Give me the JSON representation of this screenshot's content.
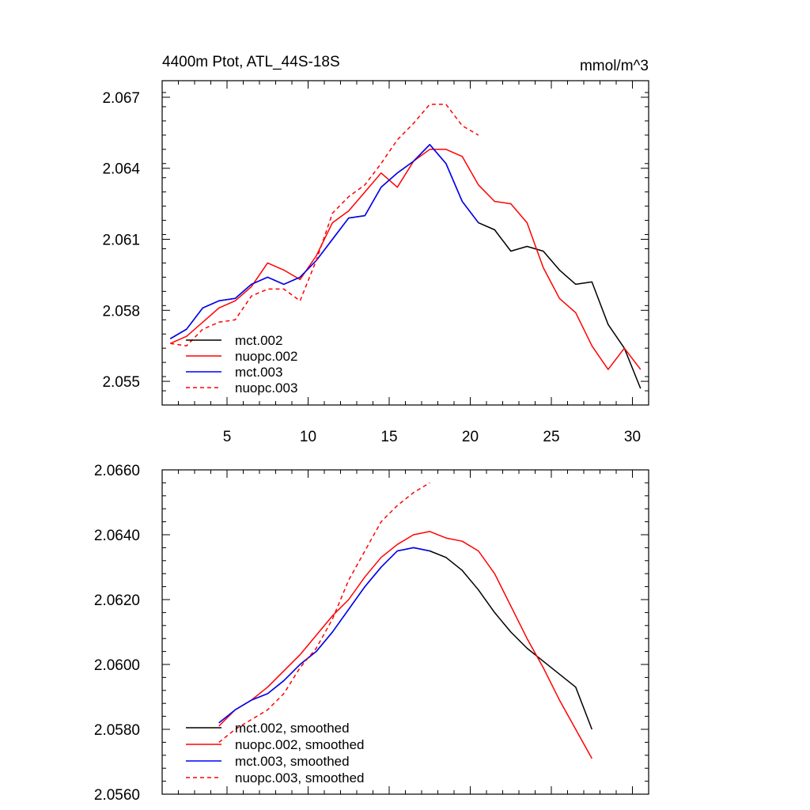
{
  "figure": {
    "title_left": "4400m Ptot, ATL_44S-18S",
    "title_right": "mmol/m^3"
  },
  "chart_data": [
    {
      "type": "line",
      "title": "4400m Ptot, ATL_44S-18S",
      "units": "mmol/m^3",
      "xlim": [
        1,
        31
      ],
      "ylim": [
        2.054,
        2.0677
      ],
      "x_ticks": [
        5,
        10,
        15,
        20,
        25,
        30
      ],
      "x_tick_labels": [
        "5",
        "10",
        "15",
        "20",
        "25",
        "30"
      ],
      "y_ticks": [
        2.055,
        2.058,
        2.061,
        2.064,
        2.067
      ],
      "y_tick_labels": [
        "2.055",
        "2.058",
        "2.061",
        "2.064",
        "2.067"
      ],
      "legend_position": "bottom-left",
      "series": [
        {
          "name": "mct.002",
          "color": "#000000",
          "dash": "solid",
          "x": [
            1.5,
            2.5,
            3.5,
            4.5,
            5.5,
            6.5,
            7.5,
            8.5,
            9.5,
            10.5,
            11.5,
            12.5,
            13.5,
            14.5,
            15.5,
            16.5,
            17.5,
            18.5,
            19.5,
            20.5,
            21.5,
            22.5,
            23.5,
            24.5,
            25.5,
            26.5,
            27.5,
            28.5,
            29.5,
            30.5
          ],
          "y": [
            2.0568,
            2.0572,
            2.0581,
            2.0584,
            2.0585,
            2.0591,
            2.0594,
            2.0591,
            2.0594,
            2.0601,
            2.061,
            2.0619,
            2.062,
            2.0632,
            2.0638,
            2.0643,
            2.065,
            2.0642,
            2.0626,
            2.0617,
            2.0614,
            2.0605,
            2.0607,
            2.0605,
            2.0597,
            2.0591,
            2.0592,
            2.0574,
            2.0564,
            2.0547
          ]
        },
        {
          "name": "nuopc.002",
          "color": "#ff0000",
          "dash": "solid",
          "x": [
            1.5,
            2.5,
            3.5,
            4.5,
            5.5,
            6.5,
            7.5,
            8.5,
            9.5,
            10.5,
            11.5,
            12.5,
            13.5,
            14.5,
            15.5,
            16.5,
            17.5,
            18.5,
            19.5,
            20.5,
            21.5,
            22.5,
            23.5,
            24.5,
            25.5,
            26.5,
            27.5,
            28.5,
            29.5,
            30.5
          ],
          "y": [
            2.0566,
            2.0569,
            2.0575,
            2.0581,
            2.0584,
            2.059,
            2.06,
            2.0597,
            2.0593,
            2.0603,
            2.0617,
            2.0622,
            2.063,
            2.0638,
            2.0632,
            2.0643,
            2.0648,
            2.0648,
            2.0645,
            2.0633,
            2.0626,
            2.0625,
            2.0617,
            2.0598,
            2.0585,
            2.0579,
            2.0565,
            2.0555,
            2.0564,
            2.0555
          ]
        },
        {
          "name": "mct.003",
          "color": "#0000ff",
          "dash": "solid",
          "x": [
            1.5,
            2.5,
            3.5,
            4.5,
            5.5,
            6.5,
            7.5,
            8.5,
            9.5,
            10.5,
            11.5,
            12.5,
            13.5,
            14.5,
            15.5,
            16.5,
            17.5,
            18.5,
            19.5,
            20.5
          ],
          "y": [
            2.0568,
            2.0572,
            2.0581,
            2.0584,
            2.0585,
            2.0591,
            2.0594,
            2.0591,
            2.0594,
            2.0601,
            2.061,
            2.0619,
            2.062,
            2.0632,
            2.0638,
            2.0643,
            2.065,
            2.0642,
            2.0626,
            2.0617
          ]
        },
        {
          "name": "nuopc.003",
          "color": "#ff0000",
          "dash": "dashed",
          "x": [
            1.5,
            2.5,
            3.5,
            4.5,
            5.5,
            6.5,
            7.5,
            8.5,
            9.5,
            10.5,
            11.5,
            12.5,
            13.5,
            14.5,
            15.5,
            16.5,
            17.5,
            18.5,
            19.5,
            20.5
          ],
          "y": [
            2.0566,
            2.0565,
            2.0572,
            2.0575,
            2.0576,
            2.0586,
            2.0589,
            2.0589,
            2.0584,
            2.0601,
            2.0621,
            2.0628,
            2.0633,
            2.0642,
            2.0652,
            2.0659,
            2.0667,
            2.0667,
            2.0658,
            2.0654
          ]
        }
      ]
    },
    {
      "type": "line",
      "xlim": [
        1,
        31
      ],
      "ylim": [
        2.056,
        2.066
      ],
      "x_ticks": [
        5,
        10,
        15,
        20,
        25,
        30
      ],
      "y_ticks": [
        2.056,
        2.058,
        2.06,
        2.062,
        2.064,
        2.066
      ],
      "y_tick_labels": [
        "2.0560",
        "2.0580",
        "2.0600",
        "2.0620",
        "2.0640",
        "2.0660"
      ],
      "legend_position": "bottom-left",
      "series": [
        {
          "name": "mct.002, smoothed",
          "color": "#000000",
          "dash": "solid",
          "x": [
            4.5,
            5.5,
            6.5,
            7.5,
            8.5,
            9.5,
            10.5,
            11.5,
            12.5,
            13.5,
            14.5,
            15.5,
            16.5,
            17.5,
            18.5,
            19.5,
            20.5,
            21.5,
            22.5,
            23.5,
            24.5,
            25.5,
            26.5,
            27.5
          ],
          "y": [
            2.0582,
            2.0586,
            2.0589,
            2.0591,
            2.0595,
            2.06,
            2.0604,
            2.061,
            2.0617,
            2.0624,
            2.063,
            2.0635,
            2.0636,
            2.0635,
            2.0633,
            2.0629,
            2.0623,
            2.0616,
            2.061,
            2.0605,
            2.0601,
            2.0597,
            2.0593,
            2.058
          ]
        },
        {
          "name": "nuopc.002, smoothed",
          "color": "#ff0000",
          "dash": "solid",
          "x": [
            4.5,
            5.5,
            6.5,
            7.5,
            8.5,
            9.5,
            10.5,
            11.5,
            12.5,
            13.5,
            14.5,
            15.5,
            16.5,
            17.5,
            18.5,
            19.5,
            20.5,
            21.5,
            22.5,
            23.5,
            24.5,
            25.5,
            26.5,
            27.5
          ],
          "y": [
            2.0581,
            2.0586,
            2.0589,
            2.0593,
            2.0598,
            2.0603,
            2.0609,
            2.0615,
            2.062,
            2.0627,
            2.0633,
            2.0637,
            2.064,
            2.0641,
            2.0639,
            2.0638,
            2.0635,
            2.0628,
            2.0618,
            2.0608,
            2.0599,
            2.0589,
            2.058,
            2.0571
          ]
        },
        {
          "name": "mct.003, smoothed",
          "color": "#0000ff",
          "dash": "solid",
          "x": [
            4.5,
            5.5,
            6.5,
            7.5,
            8.5,
            9.5,
            10.5,
            11.5,
            12.5,
            13.5,
            14.5,
            15.5,
            16.5,
            17.5
          ],
          "y": [
            2.0582,
            2.0586,
            2.0589,
            2.0591,
            2.0595,
            2.06,
            2.0604,
            2.061,
            2.0617,
            2.0624,
            2.063,
            2.0635,
            2.0636,
            2.0635
          ]
        },
        {
          "name": "nuopc.003, smoothed",
          "color": "#ff0000",
          "dash": "dashed",
          "x": [
            4.5,
            5.5,
            6.5,
            7.5,
            8.5,
            9.5,
            10.5,
            11.5,
            12.5,
            13.5,
            14.5,
            15.5,
            16.5,
            17.5
          ],
          "y": [
            2.0576,
            2.058,
            2.0583,
            2.0586,
            2.0591,
            2.0599,
            2.0605,
            2.0614,
            2.0626,
            2.0635,
            2.0644,
            2.0649,
            2.0653,
            2.0656
          ]
        }
      ]
    }
  ]
}
